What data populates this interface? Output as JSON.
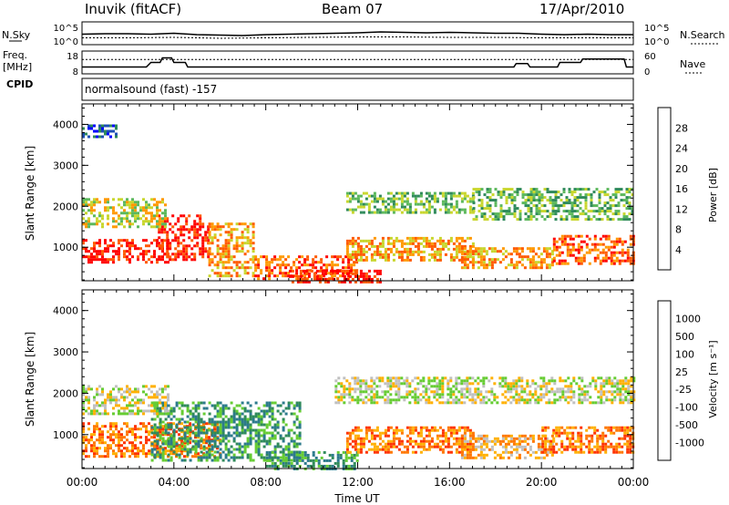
{
  "header": {
    "site": "Inuvik (fitACF)",
    "beam": "Beam 07",
    "date": "17/Apr/2010"
  },
  "left_labels": {
    "nsky": "N.Sky",
    "freq": "Freq.",
    "freq_unit": "[MHz]",
    "cpid": "CPID"
  },
  "right_labels": {
    "nsearch": "N.Search",
    "nave": "Nave"
  },
  "top_panel": {
    "left_ticks": [
      "10^5",
      "10^0"
    ],
    "right_ticks": [
      "10^5",
      "10^0"
    ],
    "series": [
      {
        "name": "N.Sky",
        "x": [
          0,
          1,
          2,
          3,
          4,
          5,
          6,
          7,
          8,
          9,
          10,
          11,
          12,
          13,
          14,
          15,
          16,
          17,
          18,
          19,
          20,
          21,
          22,
          23,
          24
        ],
        "y": [
          2.3,
          2.4,
          2.4,
          2.3,
          2.5,
          2.2,
          2.1,
          2.0,
          2.2,
          2.3,
          2.4,
          2.5,
          2.6,
          2.8,
          2.7,
          2.6,
          2.7,
          2.6,
          2.5,
          2.5,
          2.3,
          2.2,
          2.3,
          2.2,
          2.2
        ]
      },
      {
        "name": "N.Search",
        "x": [
          0,
          2,
          4,
          6,
          8,
          10,
          12,
          14,
          16,
          18,
          20,
          22,
          24
        ],
        "y": [
          1.5,
          1.5,
          1.6,
          1.4,
          1.5,
          1.6,
          1.7,
          1.7,
          1.6,
          1.6,
          1.5,
          1.5,
          1.5
        ]
      }
    ]
  },
  "freq_panel": {
    "left_ticks": [
      "18",
      "8"
    ],
    "right_ticks": [
      "60",
      "0"
    ],
    "series": [
      {
        "name": "Freq.",
        "x": [
          0,
          0.2,
          2.8,
          3.0,
          3.4,
          3.5,
          3.9,
          4.0,
          4.5,
          4.6,
          18.8,
          18.9,
          19.4,
          19.5,
          20.7,
          20.8,
          21.7,
          21.8,
          23.6,
          23.7,
          24
        ],
        "y": [
          11,
          11,
          11,
          13,
          13,
          15,
          15,
          13,
          13,
          11,
          11,
          12.5,
          12.5,
          11,
          11,
          13,
          13,
          14.5,
          14.5,
          11,
          11
        ]
      },
      {
        "name": "Nave",
        "x": [
          0,
          24
        ],
        "y": [
          38,
          38
        ]
      }
    ]
  },
  "cpid_text": "normalsound (fast) -157",
  "panels": {
    "power": {
      "ylabel": "Slant Range [km]",
      "yticks": [
        "1000",
        "2000",
        "3000",
        "4000"
      ],
      "cbar_title": "Power [dB]",
      "cbar_ticks": [
        "4",
        "8",
        "12",
        "16",
        "20",
        "24",
        "28"
      ]
    },
    "velocity": {
      "ylabel": "Slant Range [km]",
      "yticks": [
        "1000",
        "2000",
        "3000",
        "4000"
      ],
      "cbar_title": "Velocity [m s⁻¹]",
      "cbar_ticks": [
        "-1000",
        "-500",
        "-100",
        "-25",
        "25",
        "100",
        "500",
        "1000"
      ]
    }
  },
  "xaxis": {
    "title": "Time UT",
    "ticks": [
      "00:00",
      "04:00",
      "08:00",
      "12:00",
      "16:00",
      "20:00",
      "00:00"
    ]
  },
  "chart_data": {
    "type": "heatmap",
    "x_range": [
      0,
      24
    ],
    "y_range": [
      180,
      4500
    ],
    "power_colors": [
      "#0000ff",
      "#1d4fb5",
      "#2f8a5a",
      "#5cb85c",
      "#c8d62d",
      "#ff9900",
      "#ff5a00",
      "#ff0000"
    ],
    "velocity_colors": [
      "#1a3cc4",
      "#2c7a8c",
      "#2f8a5a",
      "#66cc33",
      "#c0c0c0",
      "#ffb000",
      "#ff7700",
      "#ff3300",
      "#ff0000"
    ],
    "power_bands": [
      {
        "t0": 0,
        "t1": 3.7,
        "r0": 600,
        "r1": 1200,
        "level": 7
      },
      {
        "t0": 3.3,
        "t1": 5.5,
        "r0": 700,
        "r1": 1800,
        "level": 7
      },
      {
        "t0": 5.5,
        "t1": 7.5,
        "r0": 300,
        "r1": 1600,
        "level": 5
      },
      {
        "t0": 7.5,
        "t1": 12.0,
        "r0": 250,
        "r1": 800,
        "level": 6
      },
      {
        "t0": 9.0,
        "t1": 13.0,
        "r0": 180,
        "r1": 450,
        "level": 7
      },
      {
        "t0": 0,
        "t1": 3.6,
        "r0": 1500,
        "r1": 2200,
        "level": 4
      },
      {
        "t0": 11.5,
        "t1": 17.0,
        "r0": 650,
        "r1": 1250,
        "level": 5
      },
      {
        "t0": 11.5,
        "t1": 17.0,
        "r0": 1850,
        "r1": 2350,
        "level": 3
      },
      {
        "t0": 16.5,
        "t1": 20.5,
        "r0": 500,
        "r1": 1000,
        "level": 5
      },
      {
        "t0": 17.0,
        "t1": 24,
        "r0": 1700,
        "r1": 2450,
        "level": 3
      },
      {
        "t0": 20.5,
        "t1": 24,
        "r0": 600,
        "r1": 1300,
        "level": 6
      },
      {
        "t0": 0,
        "t1": 1.5,
        "r0": 3700,
        "r1": 4000,
        "level": 1
      }
    ],
    "velocity_bands": [
      {
        "t0": 0,
        "t1": 6.0,
        "r0": 500,
        "r1": 1300,
        "level": 6
      },
      {
        "t0": 3.0,
        "t1": 9.5,
        "r0": 400,
        "r1": 1800,
        "level": 2
      },
      {
        "t0": 8.0,
        "t1": 12.0,
        "r0": 180,
        "r1": 600,
        "level": 2
      },
      {
        "t0": 0,
        "t1": 3.8,
        "r0": 1500,
        "r1": 2200,
        "level": 4
      },
      {
        "t0": 11.5,
        "t1": 17.0,
        "r0": 600,
        "r1": 1200,
        "level": 6
      },
      {
        "t0": 11.0,
        "t1": 24,
        "r0": 1800,
        "r1": 2400,
        "level": 4
      },
      {
        "t0": 16.5,
        "t1": 20.5,
        "r0": 450,
        "r1": 1000,
        "level": 5
      },
      {
        "t0": 20.0,
        "t1": 24,
        "r0": 600,
        "r1": 1200,
        "level": 6
      }
    ]
  }
}
